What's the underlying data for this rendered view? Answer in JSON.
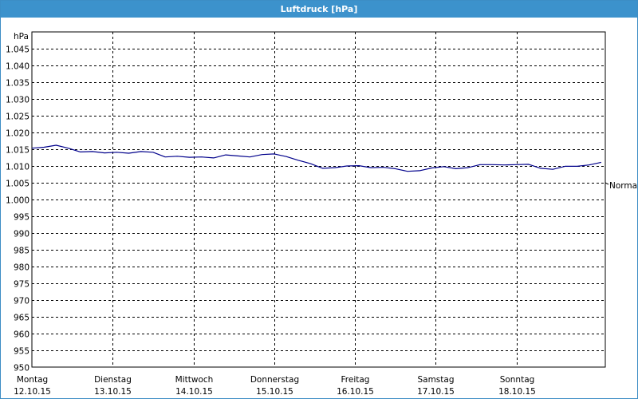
{
  "window": {
    "title": "Luftdruck [hPa]"
  },
  "chart_data": {
    "type": "line",
    "title": "Luftdruck [hPa]",
    "ylabel": "hPa",
    "xlabel": "",
    "ylim": [
      950,
      1050
    ],
    "yticks": [
      "950",
      "955",
      "960",
      "965",
      "970",
      "975",
      "980",
      "985",
      "990",
      "995",
      "1.000",
      "1.005",
      "1.010",
      "1.015",
      "1.020",
      "1.025",
      "1.030",
      "1.035",
      "1.040",
      "1.045"
    ],
    "ytick_values": [
      950,
      955,
      960,
      965,
      970,
      975,
      980,
      985,
      990,
      995,
      1000,
      1005,
      1010,
      1015,
      1020,
      1025,
      1030,
      1035,
      1040,
      1045
    ],
    "xlim": [
      0,
      7.1
    ],
    "categories": [
      {
        "day": "Montag",
        "date": "12.10.15"
      },
      {
        "day": "Dienstag",
        "date": "13.10.15"
      },
      {
        "day": "Mittwoch",
        "date": "14.10.15"
      },
      {
        "day": "Donnerstag",
        "date": "15.10.15"
      },
      {
        "day": "Freitag",
        "date": "16.10.15"
      },
      {
        "day": "Samstag",
        "date": "17.10.15"
      },
      {
        "day": "Sonntag",
        "date": "18.10.15"
      }
    ],
    "annotation": "Normal",
    "grid": true,
    "line_color": "#00008b",
    "series": [
      {
        "x": [
          0,
          0.15,
          0.3,
          0.45,
          0.6,
          0.75,
          0.9,
          1.05,
          1.2,
          1.35,
          1.5,
          1.65,
          1.8,
          1.95,
          2.1,
          2.25,
          2.4,
          2.55,
          2.7,
          2.85,
          3.0,
          3.15,
          3.3,
          3.45,
          3.6,
          3.75,
          3.9,
          4.05,
          4.2,
          4.35,
          4.5,
          4.65,
          4.8,
          4.95,
          5.1,
          5.25,
          5.4,
          5.55,
          5.7,
          5.85,
          6.0,
          6.15,
          6.3,
          6.45,
          6.6,
          6.75,
          6.9,
          7.05
        ],
        "values": [
          1015.3,
          1015.6,
          1016.2,
          1015.3,
          1014.2,
          1014.3,
          1013.9,
          1014.1,
          1013.8,
          1014.3,
          1014.1,
          1012.7,
          1012.9,
          1012.6,
          1012.7,
          1012.4,
          1013.3,
          1013.0,
          1012.7,
          1013.4,
          1013.6,
          1012.8,
          1011.7,
          1010.7,
          1009.3,
          1009.5,
          1010.0,
          1010.1,
          1009.5,
          1009.6,
          1009.2,
          1008.4,
          1008.6,
          1009.4,
          1009.8,
          1009.2,
          1009.5,
          1010.4,
          1010.4,
          1010.3,
          1010.4,
          1010.5,
          1009.3,
          1009.0,
          1009.9,
          1009.9,
          1010.3,
          1011.1
        ]
      }
    ]
  }
}
